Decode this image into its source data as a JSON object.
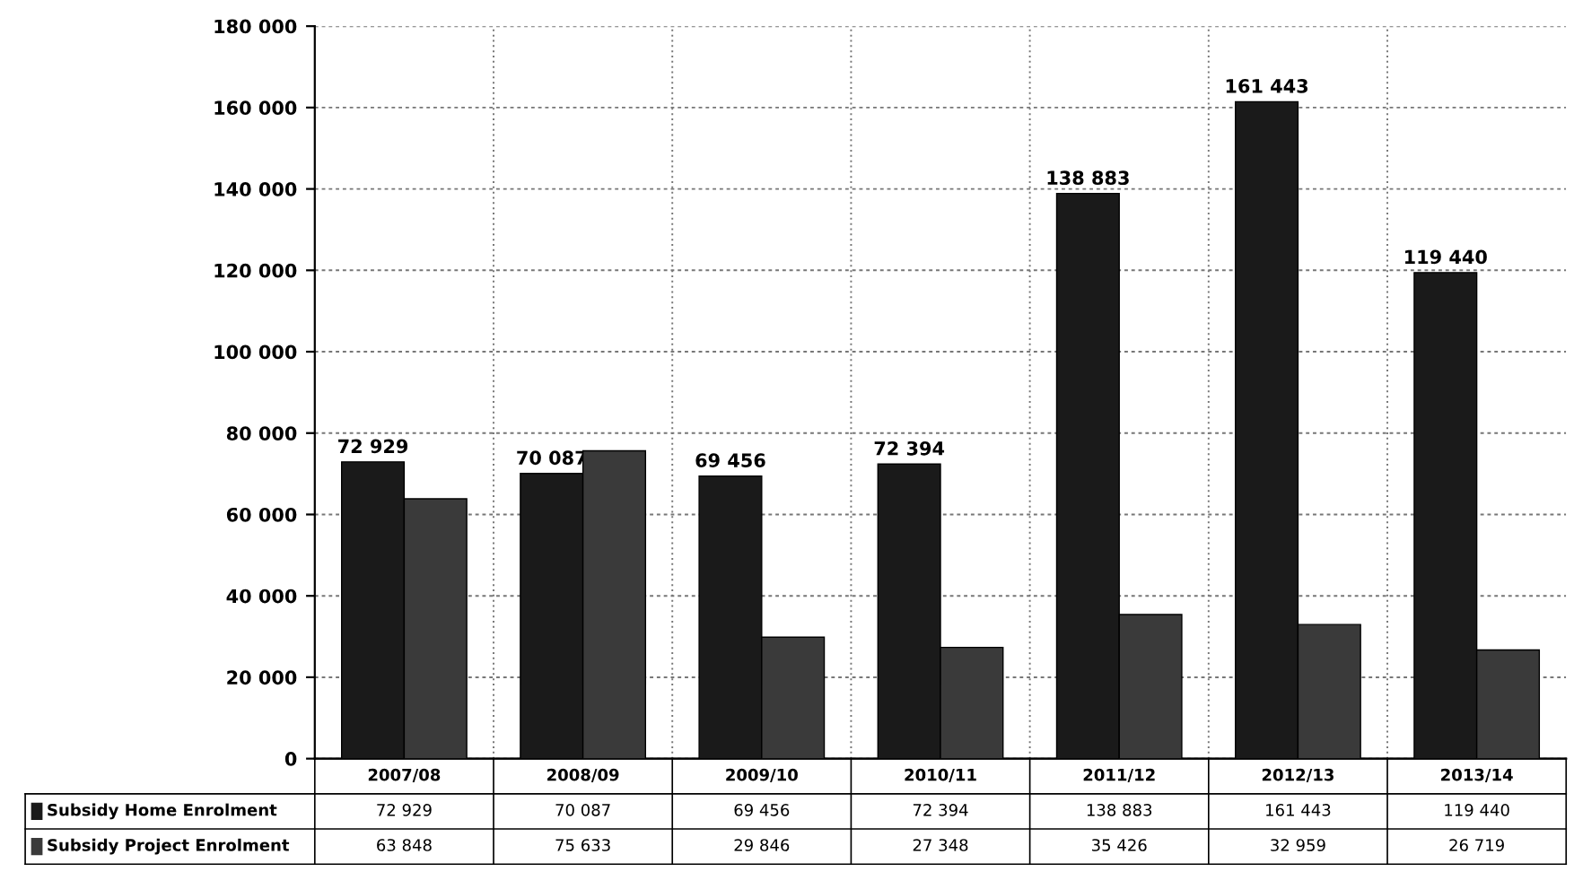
{
  "chart_data": {
    "type": "bar",
    "categories": [
      "2007/08",
      "2008/09",
      "2009/10",
      "2010/11",
      "2011/12",
      "2012/13",
      "2013/14"
    ],
    "series": [
      {
        "name": "Subsidy Home Enrolment",
        "color": "#1a1a1a",
        "values": [
          72929,
          70087,
          69456,
          72394,
          138883,
          161443,
          119440
        ],
        "value_labels": [
          "72 929",
          "70 087",
          "69 456",
          "72 394",
          "138 883",
          "161 443",
          "119 440"
        ]
      },
      {
        "name": "Subsidy Project Enrolment",
        "color": "#3a3a3a",
        "values": [
          63848,
          75633,
          29846,
          27348,
          35426,
          32959,
          26719
        ],
        "value_labels": [
          "63 848",
          "75 633",
          "29 846",
          "27 348",
          "35 426",
          "32 959",
          "26 719"
        ]
      }
    ],
    "ylim": [
      0,
      180000
    ],
    "yticks": [
      0,
      {
        "value": 20000,
        "label": "20 000"
      },
      {
        "value": 40000,
        "label": "40 000"
      },
      {
        "value": 60000,
        "label": "60 000"
      },
      {
        "value": 80000,
        "label": "80 000"
      },
      {
        "value": 100000,
        "label": "100 000"
      },
      {
        "value": 120000,
        "label": "120 000"
      },
      {
        "value": 140000,
        "label": "140 000"
      },
      {
        "value": 160000,
        "label": "160 000"
      },
      {
        "value": 180000,
        "label": "180 000"
      }
    ],
    "grid": "y",
    "data_labels": true,
    "legend": "bottom"
  }
}
